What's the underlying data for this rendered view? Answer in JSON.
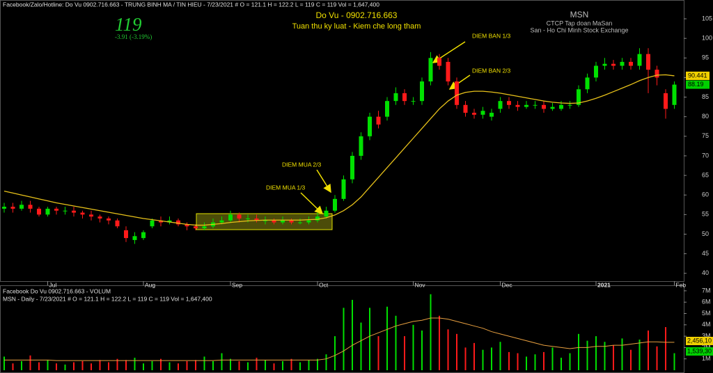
{
  "header": {
    "info": "Facebook/Zalo/Hotline: Do Vu 0902.716.663 - TRUNG BINH MA / TIN HIEU   - 7/23/2021  #   O = 121.1   H = 122.2   L = 119   C = 119   Vol = 1,647,400",
    "price": "119",
    "change": "-3.91  (-3.19%)",
    "author": "Do Vu - 0902.716.663",
    "motto": "Tuan thu ky luat - Kiem che long tham",
    "symbol": "MSN",
    "company": "CTCP Tap doan MaSan",
    "exchange": "San - Ho Chi Minh Stock Exchange"
  },
  "chart_data": [
    {
      "type": "candlestick",
      "categories": [
        null,
        null,
        null,
        null,
        null,
        "Jul",
        null,
        null,
        null,
        null,
        null,
        null,
        null,
        null,
        null,
        null,
        "Aug",
        null,
        null,
        null,
        null,
        null,
        null,
        null,
        null,
        null,
        "Sep",
        null,
        null,
        null,
        null,
        null,
        null,
        null,
        null,
        null,
        "Oct",
        null,
        null,
        null,
        null,
        null,
        null,
        null,
        null,
        null,
        null,
        "Nov",
        null,
        null,
        null,
        null,
        null,
        null,
        null,
        null,
        null,
        "Dec",
        null,
        null,
        null,
        null,
        null,
        null,
        null,
        null,
        null,
        null,
        "2021",
        null,
        null,
        null,
        null,
        null,
        null,
        null,
        null,
        "Feb"
      ],
      "open": [
        56.5,
        57,
        56.5,
        57.5,
        56.5,
        55,
        56.5,
        56,
        56,
        55.5,
        55,
        54.5,
        54,
        53.5,
        51,
        48.5,
        49,
        52,
        53.5,
        53,
        53.5,
        52.5,
        52,
        51.5,
        52,
        53,
        53.5,
        55,
        54,
        54,
        53.5,
        53.5,
        53,
        53.5,
        53,
        53,
        53.5,
        54.5,
        56,
        59,
        64,
        70,
        75,
        80,
        80,
        84,
        86,
        84,
        84,
        89,
        95,
        94,
        89,
        83,
        81,
        80.5,
        80,
        82,
        84,
        83,
        82.5,
        83,
        83,
        82,
        82,
        83,
        83,
        87,
        90,
        93,
        93.5,
        93,
        94,
        93,
        96,
        92,
        86,
        83
      ],
      "high": [
        58,
        58,
        58.5,
        58.5,
        57,
        57,
        57,
        57,
        57,
        56,
        56,
        55,
        54.5,
        54,
        52,
        50.5,
        51,
        54,
        54.5,
        54.5,
        54,
        53,
        52.5,
        53,
        54,
        54.5,
        56,
        55.5,
        55,
        55,
        54.5,
        54,
        54.5,
        54,
        54,
        54.5,
        55.5,
        57,
        60,
        65,
        71,
        76,
        81,
        81.5,
        85,
        87.5,
        87,
        85,
        90,
        96.5,
        96,
        95,
        90,
        84,
        82,
        82.5,
        82,
        85,
        85,
        84,
        84,
        84,
        84,
        83.5,
        84,
        84,
        88,
        91,
        94,
        95,
        94.5,
        95,
        95,
        97.5,
        97.5,
        93,
        87,
        89
      ],
      "low": [
        55.5,
        55.5,
        56,
        55.5,
        54.5,
        54.5,
        55,
        55,
        54.5,
        54,
        53.5,
        53,
        52.5,
        51.5,
        48,
        47.5,
        48.5,
        51.5,
        52,
        52.5,
        52,
        51,
        51,
        51,
        51.5,
        52.5,
        53,
        53,
        53,
        53,
        52.5,
        52.5,
        52.5,
        52.5,
        52.5,
        52.5,
        53,
        54,
        55.5,
        58.5,
        63,
        69,
        74,
        77,
        79,
        83,
        83,
        83,
        83,
        88,
        92,
        88,
        82,
        80,
        79.5,
        79.5,
        79,
        81,
        82,
        81.5,
        82,
        82,
        81,
        81.5,
        81.5,
        82,
        82.5,
        86,
        89,
        92,
        92,
        92,
        92,
        92,
        86,
        88,
        79.5,
        82
      ],
      "close": [
        57,
        56.5,
        57.5,
        56.5,
        55,
        56.5,
        56,
        56,
        55.5,
        55,
        54.5,
        54,
        53.5,
        52,
        49,
        49.5,
        50.5,
        53.5,
        53,
        53.5,
        52.5,
        52,
        51.5,
        52,
        53,
        53.5,
        55,
        54,
        54,
        53.5,
        53.5,
        53,
        53.5,
        53,
        53,
        53.5,
        54.5,
        56,
        59,
        64,
        70,
        75,
        80,
        78,
        84,
        86,
        84,
        84,
        89,
        95,
        93,
        89,
        83,
        81,
        80.5,
        81.5,
        81,
        84,
        83,
        82.5,
        83,
        83,
        82,
        82.5,
        83,
        83,
        87,
        90,
        93,
        93.5,
        93,
        94,
        93,
        96,
        92,
        90,
        82,
        88.19
      ],
      "up_color": "#00e000",
      "down_color": "#ff1a1a",
      "ma": {
        "color": "#e8c21a",
        "values": [
          61,
          60.5,
          60,
          59.5,
          59,
          58.5,
          58,
          57.6,
          57.2,
          56.8,
          56.4,
          56,
          55.6,
          55.2,
          54.8,
          54.4,
          54,
          53.7,
          53.4,
          53.1,
          52.8,
          52.5,
          52.3,
          52.3,
          52.5,
          52.7,
          53,
          53.2,
          53.4,
          53.5,
          53.6,
          53.6,
          53.6,
          53.6,
          53.6,
          53.7,
          53.8,
          54.2,
          54.9,
          56,
          57.5,
          59.5,
          62,
          64.5,
          67,
          69.5,
          72,
          74.5,
          77,
          79.5,
          82,
          84,
          85.5,
          86.2,
          86.5,
          86.5,
          86.3,
          86,
          85.6,
          85.2,
          84.8,
          84.4,
          84,
          83.7,
          83.5,
          83.4,
          83.5,
          84,
          84.7,
          85.5,
          86.4,
          87.3,
          88.2,
          89.2,
          90,
          90.6,
          90.7,
          90.441
        ]
      },
      "ylim": [
        38,
        109.8
      ],
      "yticks": [
        40,
        45,
        50,
        55,
        60,
        65,
        70,
        75,
        80,
        85,
        90,
        95,
        100,
        105
      ],
      "price_labels": [
        {
          "value": 90.441,
          "color": "#f0d000"
        },
        {
          "value": 88.19,
          "color": "#00d000"
        }
      ],
      "annotations": [
        "DIEM BAN 1/3",
        "DIEM BAN 2/3",
        "DIEM MUA 2/3",
        "DIEM MUA 1/3"
      ]
    },
    {
      "type": "volume",
      "title": "Facebook Do Vu 0902.716.663 - VOLUM",
      "info": "MSN - Daily  - 7/23/2021  #   O = 121.1   H = 122.2   L = 119   C = 119   Vol = 1,647,400",
      "values": [
        1.2,
        0.6,
        0.8,
        1.3,
        0.7,
        0.9,
        0.6,
        0.5,
        0.7,
        0.8,
        0.6,
        0.9,
        0.7,
        1.0,
        0.9,
        1.1,
        0.6,
        0.8,
        1.0,
        0.7,
        0.6,
        0.8,
        0.9,
        1.2,
        0.8,
        1.5,
        1.0,
        0.8,
        0.7,
        1.1,
        0.9,
        0.6,
        0.8,
        1.0,
        0.7,
        0.9,
        1.0,
        1.4,
        3.0,
        5.5,
        6.2,
        4.2,
        5.5,
        3.0,
        5.6,
        4.8,
        3.0,
        4.0,
        3.5,
        6.7,
        4.8,
        3.6,
        3.2,
        2.0,
        2.4,
        1.8,
        2.0,
        2.5,
        1.6,
        1.5,
        1.2,
        1.4,
        1.6,
        2.0,
        1.1,
        1.5,
        3.2,
        2.6,
        3.0,
        2.5,
        2.2,
        2.8,
        1.8,
        2.7,
        3.5,
        2.1,
        3.8,
        1.5
      ],
      "ma_values": [
        0.9,
        0.9,
        0.9,
        0.9,
        0.9,
        0.9,
        0.85,
        0.85,
        0.85,
        0.85,
        0.85,
        0.85,
        0.85,
        0.85,
        0.85,
        0.85,
        0.85,
        0.85,
        0.85,
        0.85,
        0.85,
        0.85,
        0.85,
        0.85,
        0.85,
        0.9,
        0.9,
        0.9,
        0.9,
        0.9,
        0.9,
        0.9,
        0.9,
        0.9,
        0.9,
        0.9,
        0.9,
        1.0,
        1.3,
        1.7,
        2.2,
        2.6,
        3.0,
        3.3,
        3.6,
        3.9,
        4.1,
        4.3,
        4.4,
        4.6,
        4.6,
        4.5,
        4.3,
        4.1,
        3.9,
        3.7,
        3.4,
        3.2,
        3.0,
        2.8,
        2.6,
        2.4,
        2.2,
        2.1,
        2.0,
        1.9,
        2.0,
        2.0,
        2.1,
        2.1,
        2.2,
        2.2,
        2.3,
        2.4,
        2.5,
        2.5,
        2.46,
        2.46
      ],
      "ma_color": "#e8a040",
      "ylim": [
        0,
        7.3
      ],
      "yticks": [
        {
          "value": 1,
          "label": "1M"
        },
        {
          "value": 2,
          "label": "2M"
        },
        {
          "value": 3,
          "label": "3M"
        },
        {
          "value": 4,
          "label": "4M"
        },
        {
          "value": 5,
          "label": "5M"
        },
        {
          "value": 6,
          "label": "6M"
        },
        {
          "value": 7,
          "label": "7M"
        }
      ],
      "last_labels": [
        "2,456,10",
        "1,539,30"
      ]
    }
  ]
}
